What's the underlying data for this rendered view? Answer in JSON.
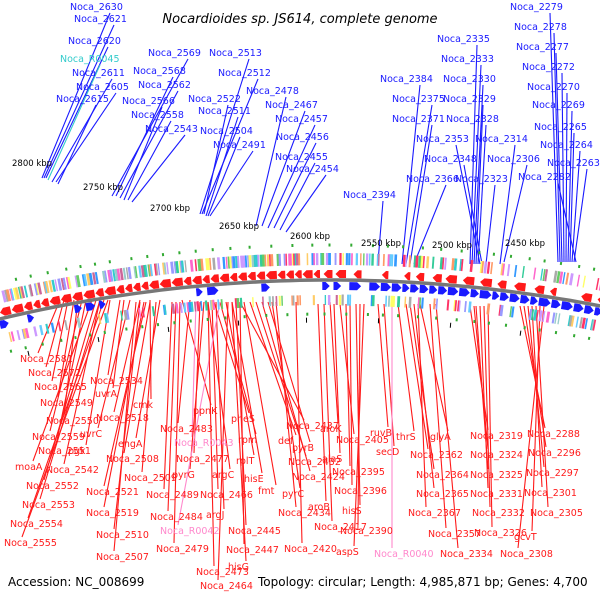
{
  "header": {
    "title": "Nocardioides sp. JS614, complete genome"
  },
  "footer": {
    "accession": "Accession: NC_008699",
    "summary": "Topology: circular; Length: 4,985,871 bp; Genes: 4,700"
  },
  "colors": {
    "forward": "#1a1aff",
    "reverse": "#ff1a1a",
    "rna": "#ff88cc",
    "rrna_blue": "#33cccc",
    "backbone": "#777777"
  },
  "scale_ticks": [
    "2800 kbp",
    "2750 kbp",
    "2700 kbp",
    "2650 kbp",
    "2600 kbp",
    "2550 kbp",
    "2500 kbp",
    "2450 kbp"
  ],
  "forward_labels": [
    "Noca_2630",
    "Noca_2621",
    "Noca_2620",
    "Noca_R0045",
    "Noca_2611",
    "Noca_2605",
    "Noca_2615",
    "Noca_2569",
    "Noca_2568",
    "Noca_2562",
    "Noca_2566",
    "Noca_2558",
    "Noca_2543",
    "Noca_2513",
    "Noca_2512",
    "Noca_2522",
    "Noca_2511",
    "Noca_2504",
    "Noca_2491",
    "Noca_2478",
    "Noca_2467",
    "Noca_2457",
    "Noca_2456",
    "Noca_2455",
    "Noca_2454",
    "Noca_2394",
    "Noca_2384",
    "Noca_2375",
    "Noca_2371",
    "Noca_2366",
    "Noca_2335",
    "Noca_2333",
    "Noca_2330",
    "Noca_2329",
    "Noca_2328",
    "Noca_2353",
    "Noca_2348",
    "Noca_2314",
    "Noca_2306",
    "Noca_2323",
    "Noca_2279",
    "Noca_2278",
    "Noca_2277",
    "Noca_2272",
    "Noca_2270",
    "Noca_2269",
    "Noca_2265",
    "Noca_2264",
    "Noca_2263",
    "Noca_2282"
  ],
  "reverse_labels": [
    "Noca_2581",
    "Noca_2572",
    "Noca_2565",
    "Noca_2549",
    "Noca_2550",
    "Noca_2559",
    "Noca_2551",
    "moaA",
    "Noca_2542",
    "Noca_2552",
    "Noca_2553",
    "Noca_2554",
    "Noca_2555",
    "Noca_2534",
    "uvrA",
    "uvrC",
    "pgk",
    "Noca_2518",
    "Noca_2521",
    "Noca_2519",
    "Noca_2510",
    "Noca_2507",
    "cmk",
    "engA",
    "Noca_2508",
    "Noca_2509",
    "Noca_2489",
    "Noca_2484",
    "Noca_2479",
    "Noca_2473",
    "Noca_2464",
    "ppnK",
    "Noca_2483",
    "Noca_R0043",
    "Noca_2477",
    "pyrG",
    "argC",
    "Noca_2466",
    "Noca_R0042",
    "argJ",
    "hisG",
    "pheS",
    "rpm",
    "rplT",
    "hisE",
    "Noca_2447",
    "Noca_2445",
    "Noca_2437",
    "def",
    "fmt",
    "Noca_2432",
    "Noca_2434",
    "pyrB",
    "pyrC",
    "aroB",
    "Noca_2420",
    "Noca_2424",
    "aroK",
    "Noca_2417",
    "Noca_2405",
    "alaS",
    "Noca_2395",
    "Noca_2396",
    "hisS",
    "aspS",
    "Noca_2390",
    "ruvB",
    "secD",
    "thrS",
    "Noca_2362",
    "Noca_2364",
    "Noca_2365",
    "Noca_2367",
    "Noca_R0040",
    "glyA",
    "Noca_2357",
    "Noca_2331",
    "Noca_2332",
    "Noca_2334",
    "Noca_2319",
    "Noca_2324",
    "Noca_2325",
    "Noca_2326",
    "Noca_2288",
    "Noca_2296",
    "Noca_2297",
    "Noca_2301",
    "Noca_2305",
    "gcvT",
    "Noca_2308"
  ],
  "rna_labels": [
    "Noca_R0045",
    "Noca_R0043",
    "Noca_R0042",
    "Noca_R0040"
  ]
}
